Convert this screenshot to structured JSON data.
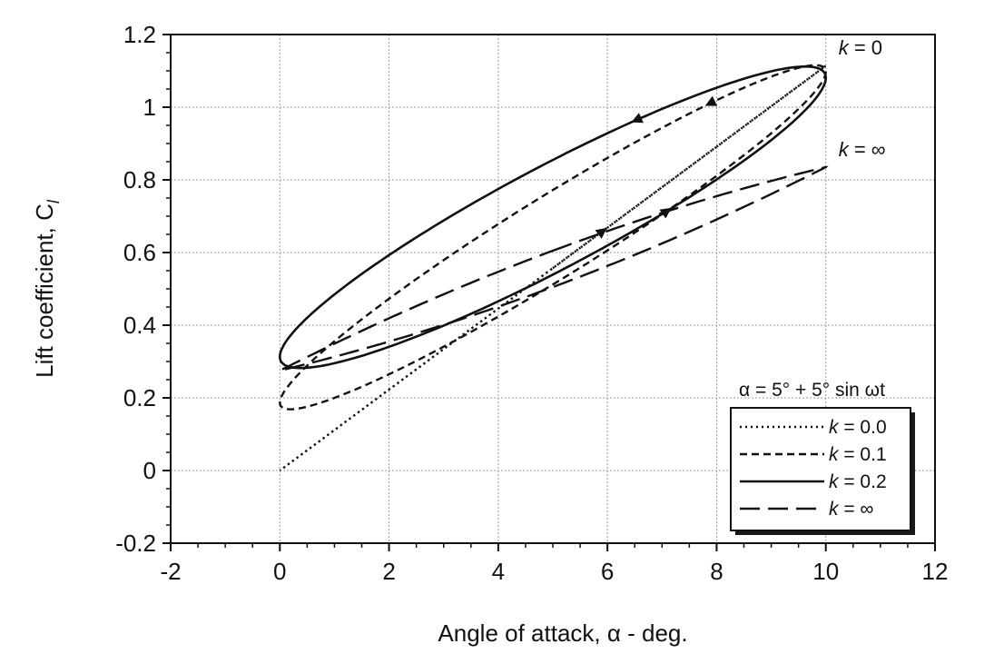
{
  "chart_data": {
    "type": "line",
    "title": "",
    "xlabel": "Angle of attack, α - deg.",
    "ylabel_main": "Lift coefficient, C",
    "ylabel_sub": "l",
    "xlim": [
      -2,
      12
    ],
    "ylim": [
      -0.2,
      1.2
    ],
    "xticks": [
      -2,
      0,
      2,
      4,
      6,
      8,
      10,
      12
    ],
    "yticks": [
      -0.2,
      0,
      0.2,
      0.4,
      0.6,
      0.8,
      1,
      1.2
    ],
    "xtick_labels": [
      "-2",
      "0",
      "2",
      "4",
      "6",
      "8",
      "10",
      "12"
    ],
    "ytick_labels": [
      "-0.2",
      "0",
      "0.2",
      "0.4",
      "0.6",
      "0.8",
      "1",
      "1.2"
    ],
    "grid": true,
    "legend_position": "bottom-right",
    "legend_title": "α = 5° + 5° sin ωt",
    "annotations": [
      {
        "text": "k = 0",
        "x": 10.2,
        "y": 1.11
      },
      {
        "text": "k = ∞",
        "x": 10.2,
        "y": 0.83
      }
    ],
    "series": [
      {
        "name": "k = 0.0",
        "style": "dotted",
        "model": "ellipse",
        "cl0": 0.0,
        "slope": 0.1114,
        "lag": 0.0,
        "gain": 1.0,
        "offset": 0.0
      },
      {
        "name": "k = 0.1",
        "style": "dashed",
        "model": "ellipse",
        "cl0": 0.0,
        "slope": 0.1114,
        "lag": 0.278,
        "gain": 0.85,
        "offset": 0.085
      },
      {
        "name": "k = 0.2",
        "style": "solid",
        "model": "ellipse",
        "cl0": 0.0,
        "slope": 0.1114,
        "lag": 0.39,
        "gain": 0.745,
        "offset": 0.14
      },
      {
        "name": "k = ∞",
        "style": "long-dash",
        "model": "lens",
        "values": {
          "alpha0": 0.0,
          "cl_at_0": 0.275,
          "alpha1": 10.0,
          "cl_at_10": 0.835,
          "half_width_at_mid": 0.05
        }
      }
    ]
  }
}
